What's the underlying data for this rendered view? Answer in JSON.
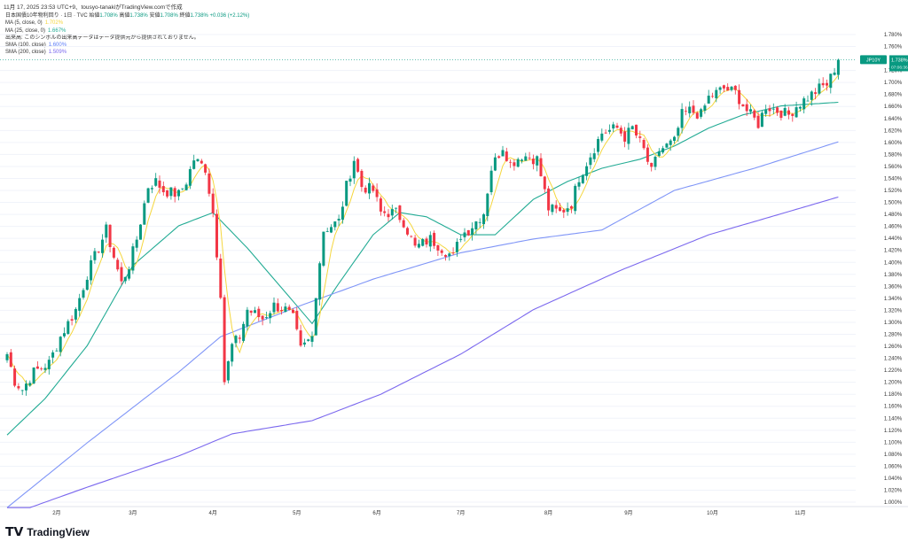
{
  "header": "11月 17, 2025 23:53 UTC+9、tousyo-tanakiがTradingView.comで作成",
  "legend": {
    "title": "日本国債10年物利回り · 1日 · TVC",
    "ohlc": [
      {
        "k": "始値",
        "v": "1.708%"
      },
      {
        "k": "高値",
        "v": "1.738%"
      },
      {
        "k": "安値",
        "v": "1.708%"
      },
      {
        "k": "終値",
        "v": "1.738%"
      }
    ],
    "change": "+0.036 (+2.12%)",
    "indicators": [
      {
        "label": "MA (5, close, 0)",
        "value": "1.702%",
        "color": "#f5d63d"
      },
      {
        "label": "MA (25, close, 0)",
        "value": "1.667%",
        "color": "#22ab94"
      },
      {
        "label": "出来高: このシンボルの出来高データはデータ提供元から提供されておりません。",
        "value": "",
        "color": "#333"
      },
      {
        "label": "SMA (100, close)",
        "value": "1.600%",
        "color": "#5b7cf7"
      },
      {
        "label": "SMA (200, close)",
        "value": "1.509%",
        "color": "#7b68ee"
      }
    ]
  },
  "axis_unit": "%",
  "price_tag": {
    "symbol": "JP10Y",
    "value": "1.738%",
    "countdown": "07:06:36"
  },
  "logo": "TradingView",
  "colors": {
    "up": "#089981",
    "down": "#f23645",
    "ma5": "#f5d63d",
    "ma25": "#22ab94",
    "sma100": "#7f95f7",
    "sma200": "#7b68ee"
  },
  "chart_data": {
    "type": "candlestick",
    "title": "日本国債10年物利回り · 1日 · TVC",
    "ylim": [
      0.99,
      1.8
    ],
    "yticks": [
      "1.000%",
      "1.020%",
      "1.040%",
      "1.060%",
      "1.080%",
      "1.100%",
      "1.120%",
      "1.140%",
      "1.160%",
      "1.180%",
      "1.200%",
      "1.220%",
      "1.240%",
      "1.260%",
      "1.280%",
      "1.300%",
      "1.320%",
      "1.340%",
      "1.360%",
      "1.380%",
      "1.400%",
      "1.420%",
      "1.440%",
      "1.460%",
      "1.480%",
      "1.500%",
      "1.520%",
      "1.540%",
      "1.560%",
      "1.580%",
      "1.600%",
      "1.620%",
      "1.640%",
      "1.660%",
      "1.680%",
      "1.700%",
      "1.720%",
      "1.760%",
      "1.780%"
    ],
    "xticks": [
      {
        "label": "2月",
        "day": 13
      },
      {
        "label": "3月",
        "day": 33
      },
      {
        "label": "4月",
        "day": 54
      },
      {
        "label": "5月",
        "day": 76
      },
      {
        "label": "6月",
        "day": 97
      },
      {
        "label": "7月",
        "day": 119
      },
      {
        "label": "8月",
        "day": 142
      },
      {
        "label": "9月",
        "day": 163
      },
      {
        "label": "10月",
        "day": 185
      },
      {
        "label": "11月",
        "day": 208
      }
    ],
    "days": 219,
    "close_keypoints": [
      [
        0,
        1.247
      ],
      [
        2,
        1.202
      ],
      [
        4,
        1.188
      ],
      [
        7,
        1.217
      ],
      [
        11,
        1.232
      ],
      [
        14,
        1.276
      ],
      [
        18,
        1.321
      ],
      [
        21,
        1.38
      ],
      [
        24,
        1.424
      ],
      [
        26,
        1.454
      ],
      [
        30,
        1.365
      ],
      [
        32,
        1.395
      ],
      [
        34,
        1.439
      ],
      [
        37,
        1.527
      ],
      [
        39,
        1.535
      ],
      [
        41,
        1.52
      ],
      [
        45,
        1.513
      ],
      [
        47,
        1.535
      ],
      [
        49,
        1.572
      ],
      [
        52,
        1.557
      ],
      [
        54,
        1.483
      ],
      [
        56,
        1.35
      ],
      [
        57,
        1.202
      ],
      [
        59,
        1.261
      ],
      [
        61,
        1.276
      ],
      [
        63,
        1.321
      ],
      [
        67,
        1.306
      ],
      [
        70,
        1.328
      ],
      [
        73,
        1.321
      ],
      [
        75,
        1.306
      ],
      [
        77,
        1.254
      ],
      [
        80,
        1.276
      ],
      [
        81,
        1.35
      ],
      [
        83,
        1.454
      ],
      [
        87,
        1.468
      ],
      [
        89,
        1.527
      ],
      [
        91,
        1.572
      ],
      [
        93,
        1.527
      ],
      [
        96,
        1.52
      ],
      [
        98,
        1.483
      ],
      [
        102,
        1.483
      ],
      [
        104,
        1.468
      ],
      [
        107,
        1.424
      ],
      [
        111,
        1.439
      ],
      [
        114,
        1.424
      ],
      [
        117,
        1.409
      ],
      [
        119,
        1.446
      ],
      [
        121,
        1.454
      ],
      [
        125,
        1.483
      ],
      [
        127,
        1.557
      ],
      [
        130,
        1.594
      ],
      [
        132,
        1.564
      ],
      [
        135,
        1.579
      ],
      [
        139,
        1.572
      ],
      [
        142,
        1.49
      ],
      [
        145,
        1.483
      ],
      [
        148,
        1.498
      ],
      [
        150,
        1.542
      ],
      [
        153,
        1.579
      ],
      [
        156,
        1.616
      ],
      [
        160,
        1.624
      ],
      [
        162,
        1.609
      ],
      [
        164,
        1.624
      ],
      [
        167,
        1.587
      ],
      [
        169,
        1.55
      ],
      [
        171,
        1.587
      ],
      [
        175,
        1.601
      ],
      [
        177,
        1.646
      ],
      [
        179,
        1.653
      ],
      [
        182,
        1.646
      ],
      [
        184,
        1.675
      ],
      [
        188,
        1.69
      ],
      [
        191,
        1.683
      ],
      [
        194,
        1.653
      ],
      [
        197,
        1.631
      ],
      [
        199,
        1.661
      ],
      [
        202,
        1.653
      ],
      [
        205,
        1.646
      ],
      [
        207,
        1.661
      ],
      [
        210,
        1.675
      ],
      [
        213,
        1.69
      ],
      [
        215,
        1.697
      ],
      [
        216,
        1.708
      ],
      [
        218,
        1.738
      ]
    ],
    "series": [
      {
        "name": "MA 25",
        "keypoints": [
          [
            -1,
            1.106
          ],
          [
            10,
            1.173
          ],
          [
            21,
            1.261
          ],
          [
            33,
            1.395
          ],
          [
            45,
            1.461
          ],
          [
            54,
            1.483
          ],
          [
            63,
            1.424
          ],
          [
            73,
            1.35
          ],
          [
            80,
            1.298
          ],
          [
            87,
            1.365
          ],
          [
            96,
            1.446
          ],
          [
            103,
            1.483
          ],
          [
            110,
            1.476
          ],
          [
            119,
            1.446
          ],
          [
            128,
            1.446
          ],
          [
            138,
            1.505
          ],
          [
            147,
            1.535
          ],
          [
            156,
            1.557
          ],
          [
            166,
            1.572
          ],
          [
            175,
            1.594
          ],
          [
            184,
            1.624
          ],
          [
            193,
            1.646
          ],
          [
            203,
            1.661
          ],
          [
            218,
            1.667
          ]
        ]
      },
      {
        "name": "SMA 100",
        "keypoints": [
          [
            0,
            0.991
          ],
          [
            21,
            1.099
          ],
          [
            45,
            1.217
          ],
          [
            56,
            1.276
          ],
          [
            77,
            1.328
          ],
          [
            96,
            1.372
          ],
          [
            119,
            1.416
          ],
          [
            138,
            1.439
          ],
          [
            156,
            1.454
          ],
          [
            175,
            1.52
          ],
          [
            196,
            1.557
          ],
          [
            218,
            1.601
          ]
        ]
      },
      {
        "name": "SMA 200",
        "keypoints": [
          [
            6,
            0.991
          ],
          [
            21,
            1.025
          ],
          [
            45,
            1.077
          ],
          [
            59,
            1.114
          ],
          [
            80,
            1.136
          ],
          [
            98,
            1.18
          ],
          [
            119,
            1.247
          ],
          [
            138,
            1.321
          ],
          [
            161,
            1.387
          ],
          [
            184,
            1.446
          ],
          [
            196,
            1.468
          ],
          [
            218,
            1.509
          ]
        ]
      }
    ]
  }
}
